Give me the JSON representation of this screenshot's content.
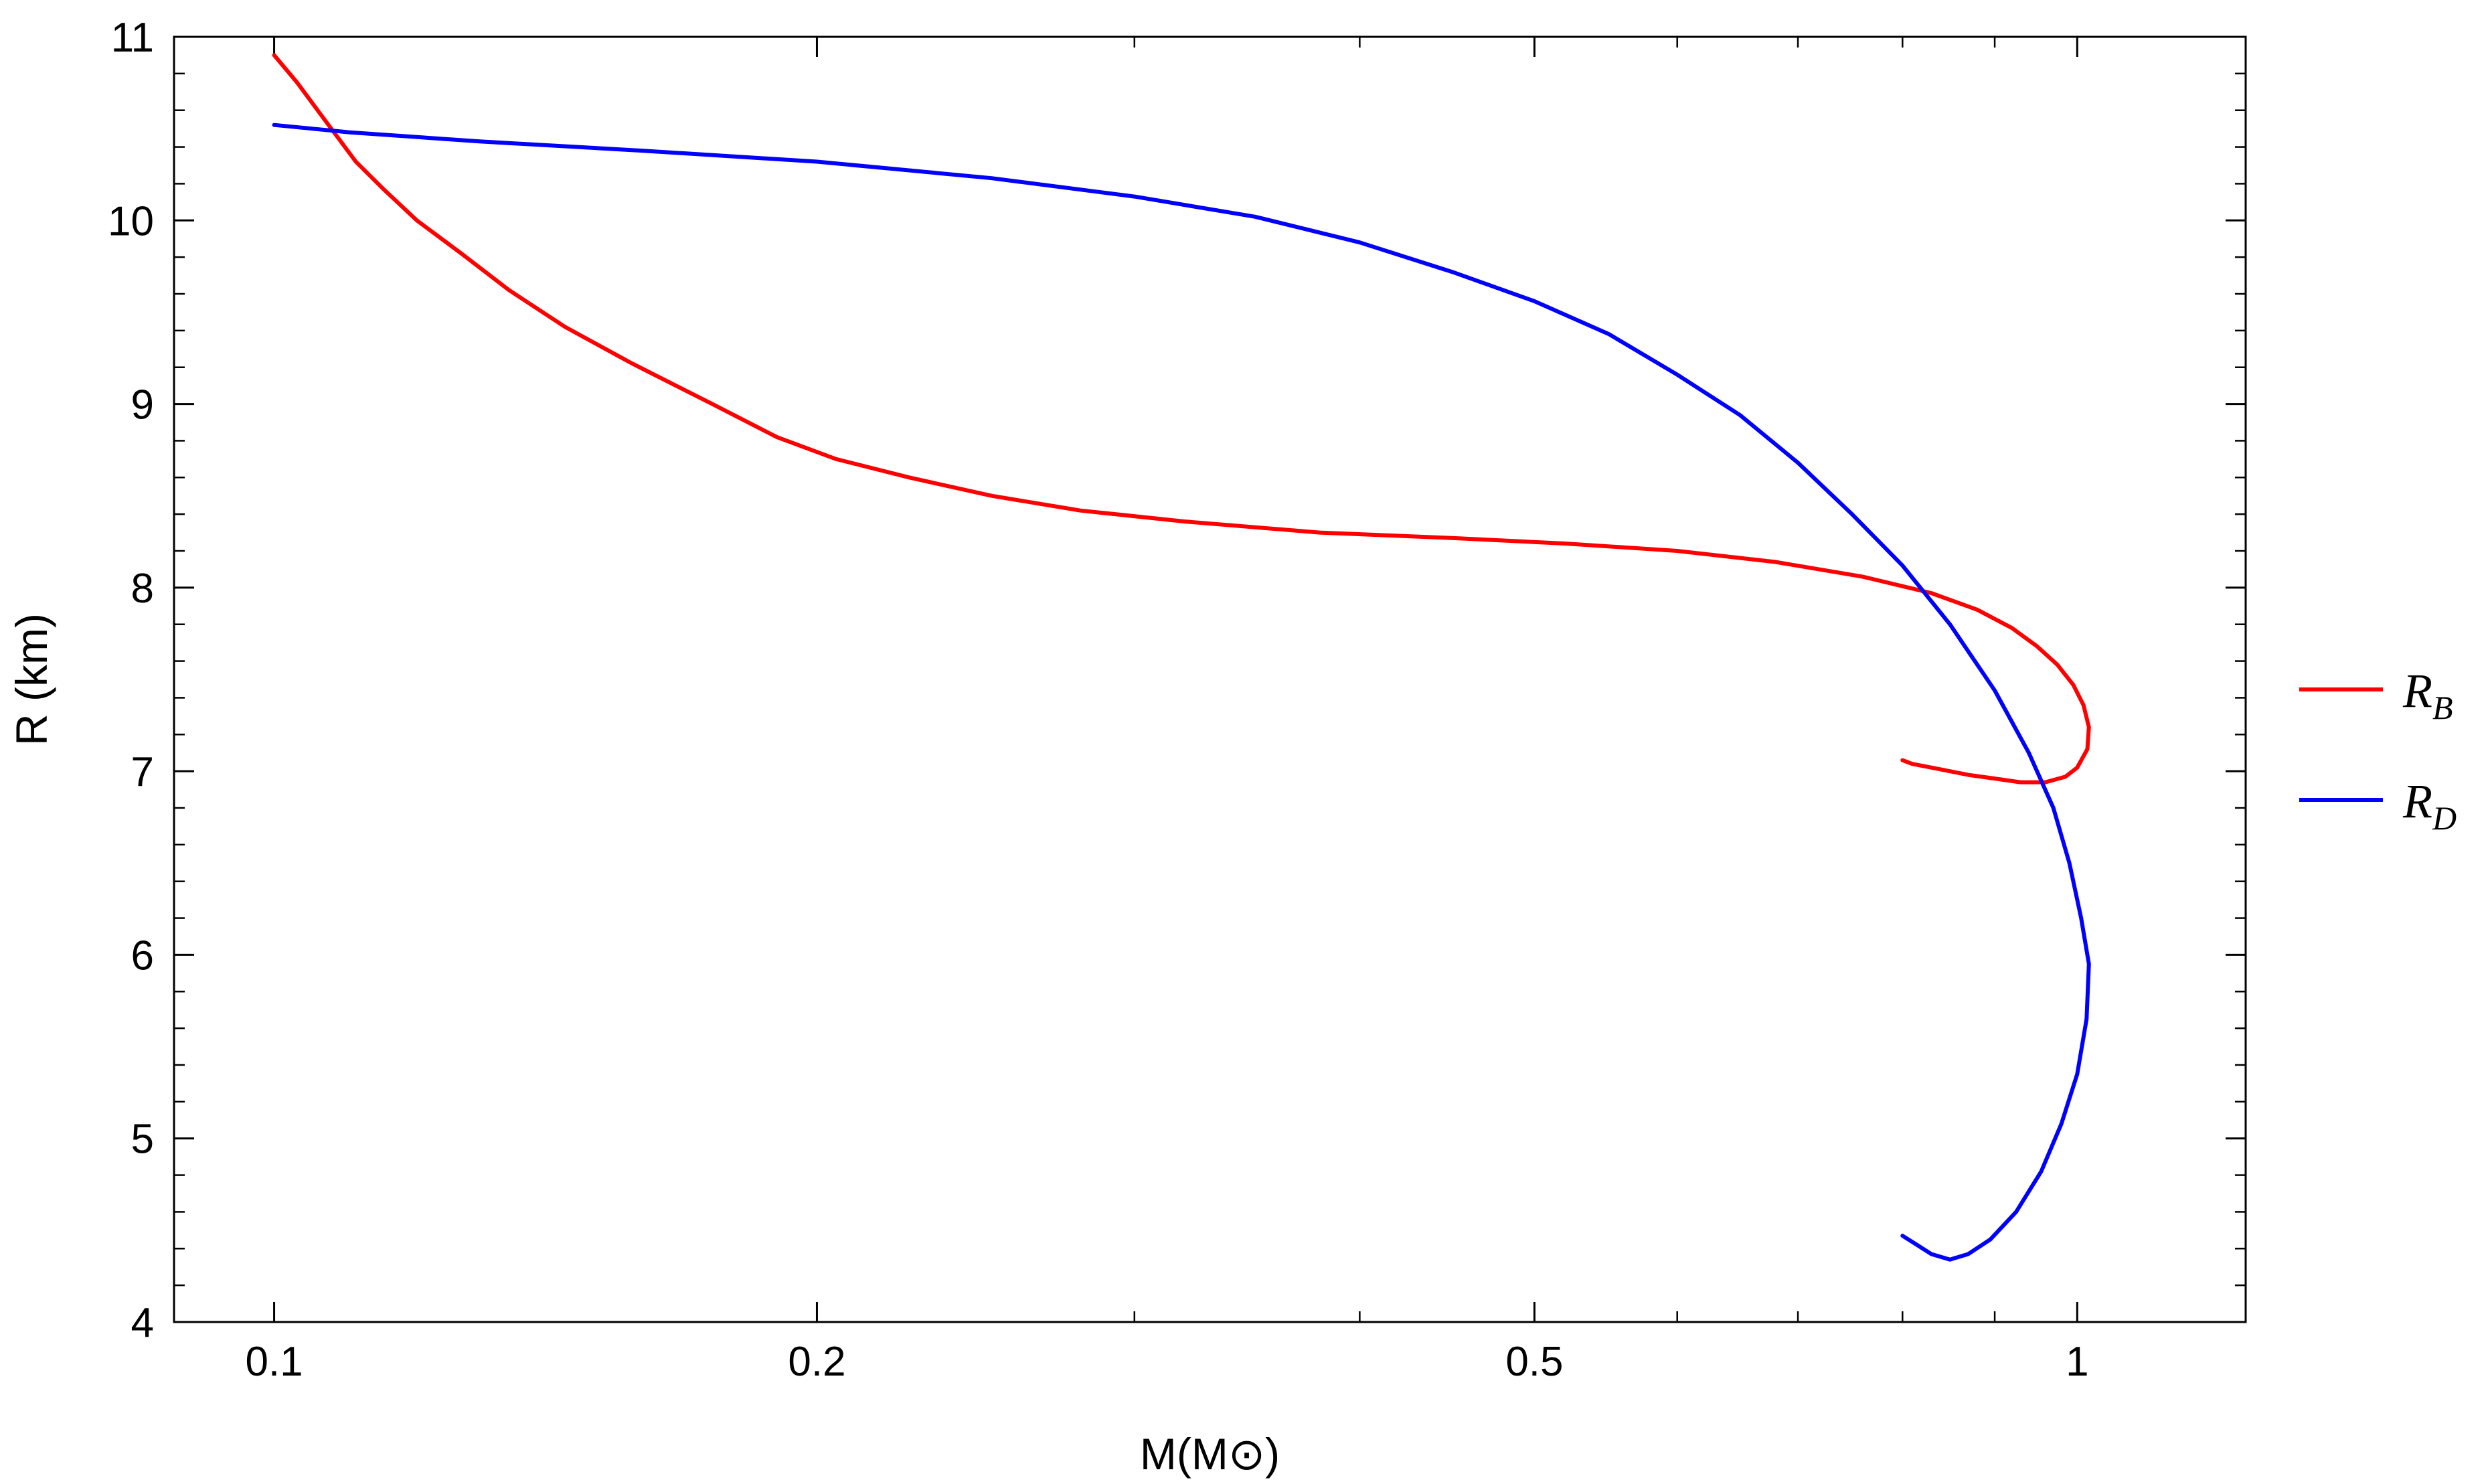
{
  "chart_data": {
    "type": "line",
    "title": "",
    "xlabel": "M(M⊙)",
    "ylabel": "R (km)",
    "xscale": "log",
    "xlim": [
      0.088,
      1.24
    ],
    "ylim": [
      4,
      11
    ],
    "grid": false,
    "legend_position": "right",
    "x_ticks": [
      {
        "value": 0.1,
        "label": "0.1"
      },
      {
        "value": 0.2,
        "label": "0.2"
      },
      {
        "value": 0.5,
        "label": "0.5"
      },
      {
        "value": 1,
        "label": "1"
      }
    ],
    "x_minor_ticks": [
      0.3,
      0.4,
      0.6,
      0.7,
      0.8,
      0.9
    ],
    "y_ticks": [
      {
        "value": 4,
        "label": "4"
      },
      {
        "value": 5,
        "label": "5"
      },
      {
        "value": 6,
        "label": "6"
      },
      {
        "value": 7,
        "label": "7"
      },
      {
        "value": 8,
        "label": "8"
      },
      {
        "value": 9,
        "label": "9"
      },
      {
        "value": 10,
        "label": "10"
      },
      {
        "value": 11,
        "label": "11"
      }
    ],
    "series": [
      {
        "name": "R_B",
        "label_main": "R",
        "label_sub": "B",
        "color": "#ff0000",
        "points": [
          [
            0.1,
            10.9
          ],
          [
            0.103,
            10.75
          ],
          [
            0.107,
            10.53
          ],
          [
            0.111,
            10.32
          ],
          [
            0.115,
            10.17
          ],
          [
            0.12,
            10.0
          ],
          [
            0.127,
            9.82
          ],
          [
            0.135,
            9.62
          ],
          [
            0.145,
            9.42
          ],
          [
            0.158,
            9.22
          ],
          [
            0.175,
            9.0
          ],
          [
            0.19,
            8.82
          ],
          [
            0.205,
            8.7
          ],
          [
            0.225,
            8.6
          ],
          [
            0.25,
            8.5
          ],
          [
            0.28,
            8.42
          ],
          [
            0.32,
            8.36
          ],
          [
            0.38,
            8.3
          ],
          [
            0.45,
            8.27
          ],
          [
            0.52,
            8.24
          ],
          [
            0.6,
            8.2
          ],
          [
            0.68,
            8.14
          ],
          [
            0.76,
            8.06
          ],
          [
            0.83,
            7.97
          ],
          [
            0.88,
            7.88
          ],
          [
            0.92,
            7.78
          ],
          [
            0.95,
            7.68
          ],
          [
            0.975,
            7.58
          ],
          [
            0.995,
            7.47
          ],
          [
            1.008,
            7.36
          ],
          [
            1.015,
            7.24
          ],
          [
            1.013,
            7.12
          ],
          [
            1.0,
            7.02
          ],
          [
            0.985,
            6.97
          ],
          [
            0.96,
            6.94
          ],
          [
            0.93,
            6.94
          ],
          [
            0.9,
            6.96
          ],
          [
            0.87,
            6.98
          ],
          [
            0.84,
            7.01
          ],
          [
            0.81,
            7.04
          ],
          [
            0.8,
            7.06
          ]
        ]
      },
      {
        "name": "R_D",
        "label_main": "R",
        "label_sub": "D",
        "color": "#0000ff",
        "points": [
          [
            0.1,
            10.52
          ],
          [
            0.11,
            10.48
          ],
          [
            0.13,
            10.43
          ],
          [
            0.16,
            10.38
          ],
          [
            0.2,
            10.32
          ],
          [
            0.25,
            10.23
          ],
          [
            0.3,
            10.13
          ],
          [
            0.35,
            10.02
          ],
          [
            0.4,
            9.88
          ],
          [
            0.45,
            9.72
          ],
          [
            0.5,
            9.56
          ],
          [
            0.55,
            9.38
          ],
          [
            0.6,
            9.16
          ],
          [
            0.65,
            8.94
          ],
          [
            0.7,
            8.68
          ],
          [
            0.75,
            8.4
          ],
          [
            0.8,
            8.12
          ],
          [
            0.85,
            7.8
          ],
          [
            0.9,
            7.44
          ],
          [
            0.94,
            7.1
          ],
          [
            0.97,
            6.8
          ],
          [
            0.99,
            6.5
          ],
          [
            1.005,
            6.2
          ],
          [
            1.015,
            5.95
          ],
          [
            1.012,
            5.65
          ],
          [
            1.0,
            5.35
          ],
          [
            0.98,
            5.08
          ],
          [
            0.955,
            4.82
          ],
          [
            0.925,
            4.6
          ],
          [
            0.895,
            4.45
          ],
          [
            0.87,
            4.37
          ],
          [
            0.85,
            4.34
          ],
          [
            0.83,
            4.37
          ],
          [
            0.815,
            4.42
          ],
          [
            0.8,
            4.47
          ]
        ]
      }
    ]
  }
}
